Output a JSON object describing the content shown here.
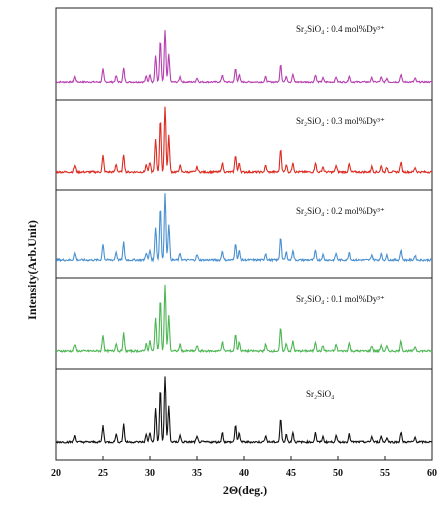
{
  "chart_data": {
    "type": "line",
    "xlabel": "2Θ(deg.)",
    "ylabel": "Intensity(Arb.Unit)",
    "xlim": [
      20,
      60
    ],
    "xticks": [
      20,
      25,
      30,
      35,
      40,
      45,
      50,
      55,
      60
    ],
    "grid": false,
    "panels": [
      {
        "label": "Sr₂SiO₄ : 0.4 mol%Dy³⁺",
        "color": "#b63fb0"
      },
      {
        "label": "Sr₂SiO₄ : 0.3 mol%Dy³⁺",
        "color": "#dc2b21"
      },
      {
        "label": "Sr₂SiO₄ : 0.2 mol%Dy³⁺",
        "color": "#4a90cf"
      },
      {
        "label": "Sr₂SiO₄ : 0.1 mol%Dy³⁺",
        "color": "#4cb653"
      },
      {
        "label": "Sr₂SiO₄",
        "color": "#111111"
      }
    ],
    "peaks": [
      {
        "x": 22.0,
        "intensity": 0.1
      },
      {
        "x": 25.0,
        "intensity": 0.25
      },
      {
        "x": 26.4,
        "intensity": 0.12
      },
      {
        "x": 27.2,
        "intensity": 0.27
      },
      {
        "x": 29.6,
        "intensity": 0.11
      },
      {
        "x": 30.0,
        "intensity": 0.15
      },
      {
        "x": 30.6,
        "intensity": 0.5
      },
      {
        "x": 31.1,
        "intensity": 0.8
      },
      {
        "x": 31.6,
        "intensity": 1.0
      },
      {
        "x": 32.0,
        "intensity": 0.55
      },
      {
        "x": 33.2,
        "intensity": 0.1
      },
      {
        "x": 35.0,
        "intensity": 0.08
      },
      {
        "x": 37.7,
        "intensity": 0.14
      },
      {
        "x": 39.1,
        "intensity": 0.26
      },
      {
        "x": 39.5,
        "intensity": 0.14
      },
      {
        "x": 42.3,
        "intensity": 0.1
      },
      {
        "x": 43.9,
        "intensity": 0.35
      },
      {
        "x": 44.5,
        "intensity": 0.12
      },
      {
        "x": 45.2,
        "intensity": 0.15
      },
      {
        "x": 47.6,
        "intensity": 0.14
      },
      {
        "x": 48.4,
        "intensity": 0.08
      },
      {
        "x": 49.8,
        "intensity": 0.1
      },
      {
        "x": 51.2,
        "intensity": 0.12
      },
      {
        "x": 53.6,
        "intensity": 0.08
      },
      {
        "x": 54.6,
        "intensity": 0.09
      },
      {
        "x": 55.2,
        "intensity": 0.07
      },
      {
        "x": 56.7,
        "intensity": 0.15
      },
      {
        "x": 58.2,
        "intensity": 0.07
      }
    ]
  }
}
